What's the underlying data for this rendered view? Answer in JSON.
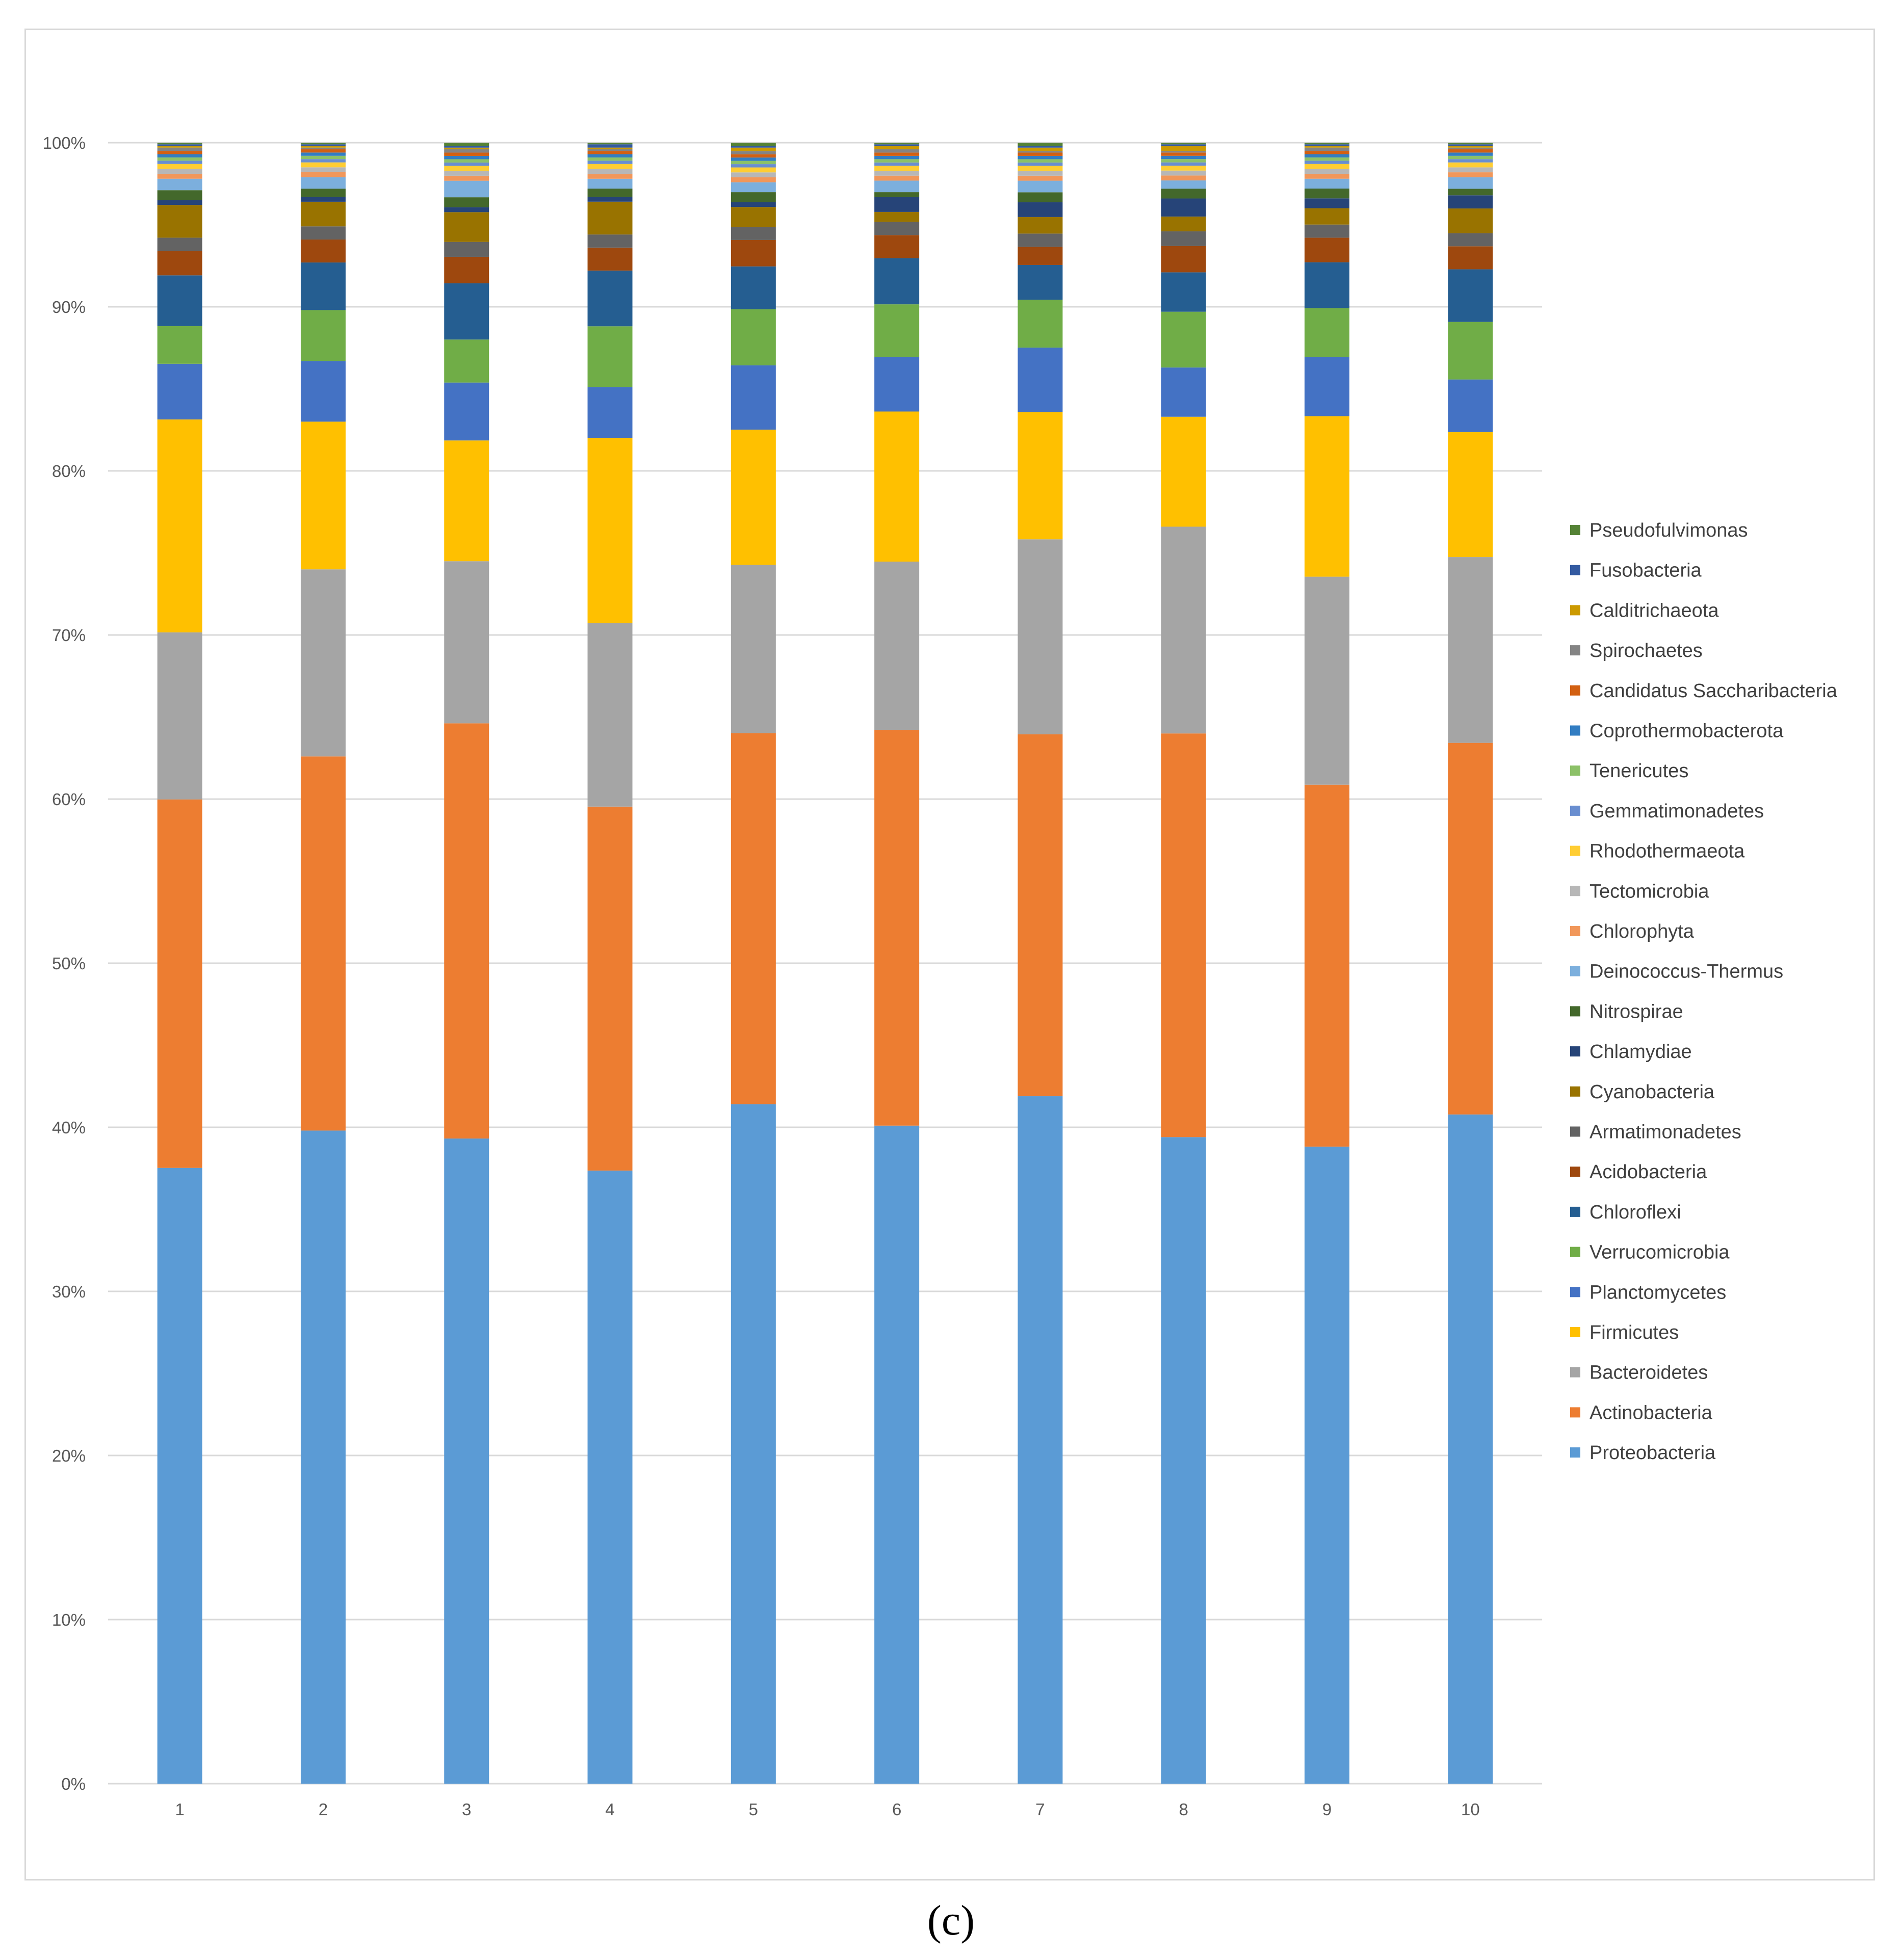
{
  "caption": "(c)",
  "chart_data": {
    "type": "bar",
    "stacked": true,
    "percent": true,
    "title": "",
    "xlabel": "",
    "ylabel": "",
    "ylim": [
      0,
      100
    ],
    "yticks": [
      0,
      10,
      20,
      30,
      40,
      50,
      60,
      70,
      80,
      90,
      100
    ],
    "ytick_labels": [
      "0%",
      "10%",
      "20%",
      "30%",
      "40%",
      "50%",
      "60%",
      "70%",
      "80%",
      "90%",
      "100%"
    ],
    "grid": true,
    "legend_position": "right",
    "categories": [
      "1",
      "2",
      "3",
      "4",
      "5",
      "6",
      "7",
      "8",
      "9",
      "10"
    ],
    "series": [
      {
        "name": "Proteobacteria",
        "color": "#5B9BD5",
        "values": [
          37.6,
          39.8,
          39.0,
          37.4,
          41.2,
          39.9,
          41.6,
          39.4,
          38.9,
          40.7
        ]
      },
      {
        "name": "Actinobacteria",
        "color": "#ED7D31",
        "values": [
          22.5,
          22.8,
          25.1,
          22.2,
          22.5,
          24.0,
          21.9,
          24.6,
          22.1,
          22.6
        ]
      },
      {
        "name": "Bacteroidetes",
        "color": "#A5A5A5",
        "values": [
          10.2,
          11.4,
          9.8,
          11.2,
          10.2,
          10.2,
          11.8,
          12.6,
          12.7,
          11.3
        ]
      },
      {
        "name": "Firmicutes",
        "color": "#FFC000",
        "values": [
          13.0,
          9.0,
          7.3,
          11.3,
          8.2,
          9.1,
          7.7,
          6.7,
          9.8,
          7.6
        ]
      },
      {
        "name": "Planctomycetes",
        "color": "#4472C4",
        "values": [
          3.4,
          3.7,
          3.5,
          3.1,
          3.9,
          3.3,
          3.9,
          3.0,
          3.6,
          3.2
        ]
      },
      {
        "name": "Verrucomicrobia",
        "color": "#70AD47",
        "values": [
          2.3,
          3.1,
          2.6,
          3.7,
          3.4,
          3.2,
          2.9,
          3.4,
          3.0,
          3.5
        ]
      },
      {
        "name": "Chloroflexi",
        "color": "#255E91",
        "values": [
          3.1,
          2.9,
          3.4,
          3.4,
          2.6,
          2.8,
          2.1,
          2.4,
          2.8,
          3.2
        ]
      },
      {
        "name": "Acidobacteria",
        "color": "#9E480E",
        "values": [
          1.5,
          1.4,
          1.6,
          1.4,
          1.6,
          1.4,
          1.1,
          1.6,
          1.5,
          1.4
        ]
      },
      {
        "name": "Armatimonadetes",
        "color": "#636363",
        "values": [
          0.8,
          0.8,
          0.9,
          0.8,
          0.8,
          0.8,
          0.8,
          0.9,
          0.8,
          0.8
        ]
      },
      {
        "name": "Cyanobacteria",
        "color": "#997300",
        "values": [
          2.0,
          1.5,
          1.8,
          2.0,
          1.2,
          0.6,
          1.0,
          0.9,
          1.0,
          1.5
        ]
      },
      {
        "name": "Chlamydiae",
        "color": "#264478",
        "values": [
          0.3,
          0.3,
          0.3,
          0.3,
          0.3,
          0.9,
          0.9,
          1.1,
          0.6,
          0.8
        ]
      },
      {
        "name": "Nitrospirae",
        "color": "#43682B",
        "values": [
          0.6,
          0.5,
          0.6,
          0.5,
          0.6,
          0.3,
          0.6,
          0.6,
          0.6,
          0.4
        ]
      },
      {
        "name": "Deinococcus-Thermus",
        "color": "#7CAFDD",
        "values": [
          0.7,
          0.7,
          1.0,
          0.6,
          0.6,
          0.7,
          0.7,
          0.5,
          0.6,
          0.7
        ]
      },
      {
        "name": "Chlorophyta",
        "color": "#F1975A",
        "values": [
          0.3,
          0.3,
          0.3,
          0.3,
          0.3,
          0.3,
          0.3,
          0.3,
          0.3,
          0.3
        ]
      },
      {
        "name": "Tectomicrobia",
        "color": "#B7B7B7",
        "values": [
          0.3,
          0.3,
          0.3,
          0.3,
          0.3,
          0.3,
          0.3,
          0.3,
          0.3,
          0.3
        ]
      },
      {
        "name": "Rhodothermaeota",
        "color": "#FFCD33",
        "values": [
          0.3,
          0.3,
          0.3,
          0.3,
          0.3,
          0.3,
          0.3,
          0.3,
          0.3,
          0.3
        ]
      },
      {
        "name": "Gemmatimonadetes",
        "color": "#698ED0",
        "values": [
          0.2,
          0.2,
          0.2,
          0.2,
          0.2,
          0.2,
          0.2,
          0.2,
          0.2,
          0.2
        ]
      },
      {
        "name": "Tenericutes",
        "color": "#8CC168",
        "values": [
          0.2,
          0.2,
          0.2,
          0.2,
          0.2,
          0.2,
          0.2,
          0.2,
          0.2,
          0.2
        ]
      },
      {
        "name": "Coprothermobacterota",
        "color": "#327DC2",
        "values": [
          0.2,
          0.2,
          0.2,
          0.2,
          0.2,
          0.2,
          0.2,
          0.2,
          0.2,
          0.2
        ]
      },
      {
        "name": "Candidatus Saccharibacteria",
        "color": "#D26012",
        "values": [
          0.2,
          0.2,
          0.2,
          0.2,
          0.2,
          0.2,
          0.2,
          0.2,
          0.2,
          0.2
        ]
      },
      {
        "name": "Spirochaetes",
        "color": "#848484",
        "values": [
          0.2,
          0.1,
          0.2,
          0.1,
          0.2,
          0.2,
          0.1,
          0.1,
          0.2,
          0.1
        ]
      },
      {
        "name": "Calditrichaeota",
        "color": "#CC9A00",
        "values": [
          0.1,
          0.1,
          0.1,
          0.1,
          0.2,
          0.2,
          0.2,
          0.3,
          0.1,
          0.1
        ]
      },
      {
        "name": "Fusobacteria",
        "color": "#335AA1",
        "values": [
          0.1,
          0.1,
          0.1,
          0.2,
          0.1,
          0.1,
          0.1,
          0.1,
          0.1,
          0.1
        ]
      },
      {
        "name": "Pseudofulvimonas",
        "color": "#548235",
        "values": [
          0.1,
          0.1,
          0.2,
          0.1,
          0.2,
          0.1,
          0.2,
          0.1,
          0.1,
          0.1
        ]
      }
    ]
  }
}
